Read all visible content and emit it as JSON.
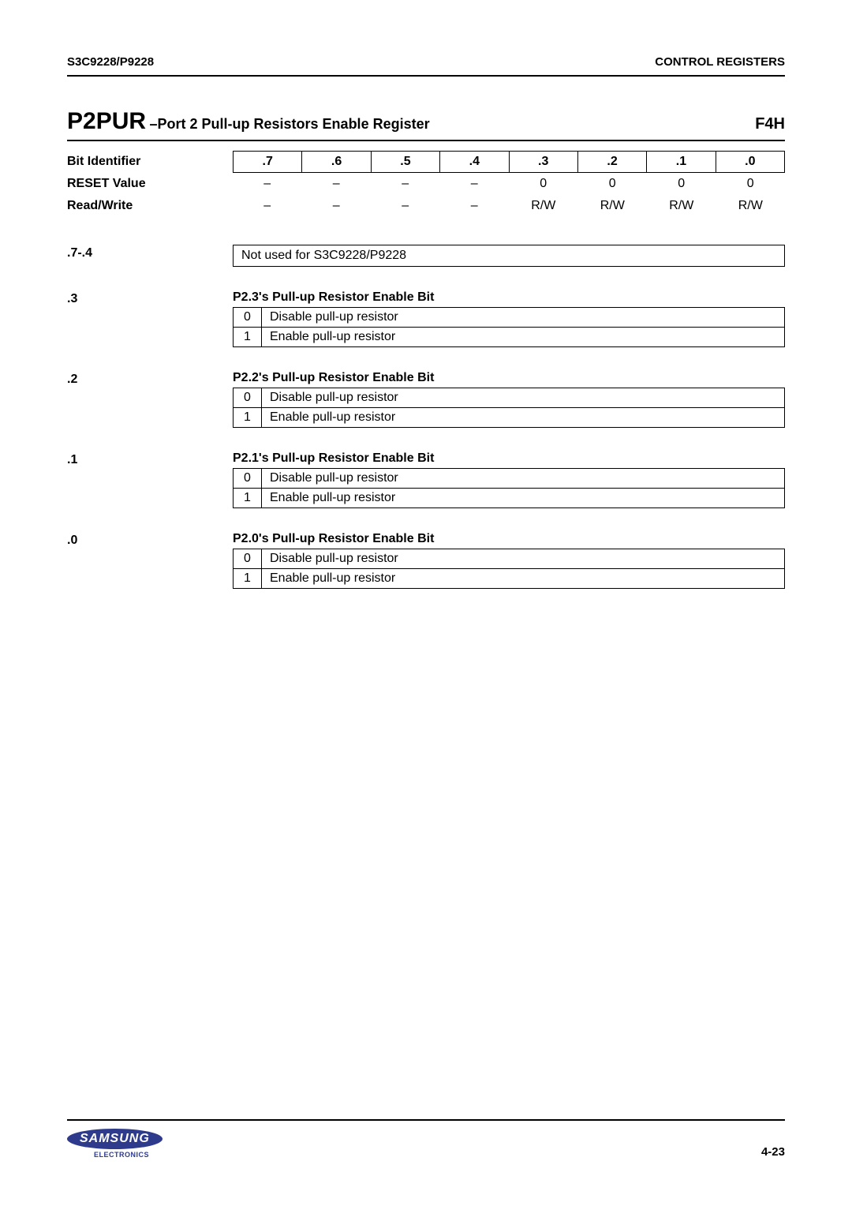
{
  "header": {
    "left": "S3C9228/P9228",
    "right": "CONTROL REGISTERS"
  },
  "register": {
    "name": "P2PUR",
    "dash": "–",
    "desc": "Port 2 Pull-up Resistors Enable Register",
    "addr": "F4H"
  },
  "labels": {
    "bit_identifier": "Bit Identifier",
    "reset_value": "RESET Value",
    "read_write": "Read/Write"
  },
  "bits": [
    ".7",
    ".6",
    ".5",
    ".4",
    ".3",
    ".2",
    ".1",
    ".0"
  ],
  "reset_values": [
    "–",
    "–",
    "–",
    "–",
    "0",
    "0",
    "0",
    "0"
  ],
  "rw_values": [
    "–",
    "–",
    "–",
    "–",
    "R/W",
    "R/W",
    "R/W",
    "R/W"
  ],
  "sections": [
    {
      "label": ".7-.4",
      "type": "box",
      "text": "Not used for S3C9228/P9228"
    },
    {
      "label": ".3",
      "type": "options",
      "title": "P2.3's Pull-up Resistor Enable Bit",
      "options": [
        {
          "code": "0",
          "desc": "Disable pull-up resistor"
        },
        {
          "code": "1",
          "desc": "Enable pull-up resistor"
        }
      ]
    },
    {
      "label": ".2",
      "type": "options",
      "title": "P2.2's Pull-up Resistor Enable Bit",
      "options": [
        {
          "code": "0",
          "desc": "Disable pull-up resistor"
        },
        {
          "code": "1",
          "desc": "Enable pull-up resistor"
        }
      ]
    },
    {
      "label": ".1",
      "type": "options",
      "title": "P2.1's Pull-up Resistor Enable Bit",
      "options": [
        {
          "code": "0",
          "desc": "Disable pull-up resistor"
        },
        {
          "code": "1",
          "desc": "Enable pull-up resistor"
        }
      ]
    },
    {
      "label": ".0",
      "type": "options",
      "title": "P2.0's Pull-up Resistor Enable Bit",
      "options": [
        {
          "code": "0",
          "desc": "Disable pull-up resistor"
        },
        {
          "code": "1",
          "desc": "Enable pull-up resistor"
        }
      ]
    }
  ],
  "footer": {
    "logo_text": "SAMSUNG",
    "logo_sub": "ELECTRONICS",
    "page": "4-23"
  },
  "colors": {
    "text": "#000000",
    "border": "#000000",
    "samsung_blue": "#2e3a8c",
    "background": "#ffffff"
  }
}
